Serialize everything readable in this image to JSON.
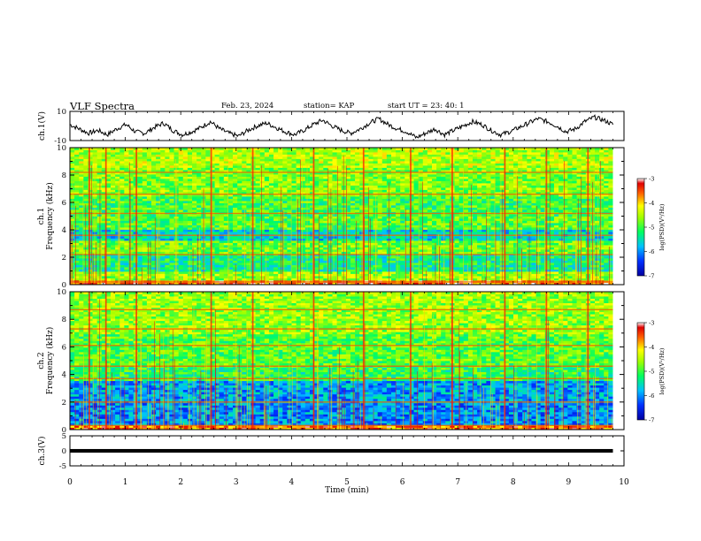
{
  "header": {
    "title": "VLF Spectra",
    "date": "Feb. 23, 2024",
    "station": "station= KAP",
    "start": "start  UT  =   23: 40: 1"
  },
  "colors": {
    "trace": "#000000",
    "colormap": [
      "#0000a0",
      "#0030ff",
      "#00a0ff",
      "#00e0c0",
      "#00ff40",
      "#a0ff00",
      "#ffff00",
      "#ffb000",
      "#ff4000",
      "#e00000",
      "#ffffff"
    ]
  },
  "chart_data": [
    {
      "type": "line",
      "ylabel": "ch.1(V)",
      "ylim": [
        -10,
        10
      ],
      "yticks": [
        "10",
        "-10"
      ],
      "x_range_min": [
        0,
        9.8
      ],
      "series": [
        {
          "note_values": "approximate waveform (10 s samples)",
          "values": [
            1,
            -2,
            -5,
            -3,
            -6,
            -2,
            1,
            -4,
            -5,
            -1,
            2,
            -3,
            -6,
            -4,
            -1,
            3,
            -2,
            -5,
            -7,
            -3,
            0,
            2,
            -1,
            -4,
            -6,
            -3,
            1,
            4,
            0,
            -3,
            -5,
            -2,
            2,
            5,
            1,
            -2,
            -4,
            -8,
            -5,
            -2,
            -6,
            -3,
            0,
            3,
            1,
            -3,
            -6,
            -4,
            -1,
            2,
            5,
            3,
            0,
            -4,
            -2,
            3,
            6,
            4,
            1
          ]
        }
      ]
    },
    {
      "type": "heatmap",
      "ylabel_top": "ch.1",
      "ylabel": "Frequency (kHz)",
      "ylim": [
        0,
        10
      ],
      "yticks": [
        "0",
        "2",
        "4",
        "6",
        "8",
        "10"
      ],
      "colorbar": {
        "label": "log(PSD)(V²/Hz)",
        "ticks": [
          "-3",
          "-4",
          "-5",
          "-6",
          "-7"
        ],
        "range": [
          -7,
          -3
        ]
      },
      "bands": [
        {
          "freq": [
            0,
            0.3
          ],
          "level": -3.5
        },
        {
          "freq": [
            0.3,
            1.0
          ],
          "level": -4.6
        },
        {
          "freq": [
            1.0,
            2.2
          ],
          "level": -5.3
        },
        {
          "freq": [
            2.2,
            3.2
          ],
          "level": -4.8
        },
        {
          "freq": [
            3.2,
            4.0
          ],
          "level": -5.6
        },
        {
          "freq": [
            4.0,
            5.0
          ],
          "level": -4.9
        },
        {
          "freq": [
            5.0,
            6.5
          ],
          "level": -5.0
        },
        {
          "freq": [
            6.5,
            8.5
          ],
          "level": -4.7
        },
        {
          "freq": [
            8.5,
            10.0
          ],
          "level": -4.5
        }
      ],
      "lines_khz": [
        0.2,
        2.2,
        3.6,
        5.2,
        6.6,
        8.2
      ],
      "bursts_min": [
        0.35,
        0.65,
        1.2,
        2.55,
        3.3,
        4.4,
        5.3,
        6.15,
        6.9,
        7.85,
        8.6,
        9.35
      ]
    },
    {
      "type": "heatmap",
      "ylabel_top": "ch.2",
      "ylabel": "Frequency (kHz)",
      "ylim": [
        0,
        10
      ],
      "yticks": [
        "0",
        "2",
        "4",
        "6",
        "8",
        "10"
      ],
      "colorbar": {
        "label": "log(PSD)(V²/Hz)",
        "ticks": [
          "-3",
          "-4",
          "-5",
          "-6",
          "-7"
        ],
        "range": [
          -7,
          -3
        ]
      },
      "bands": [
        {
          "freq": [
            0,
            0.4
          ],
          "level": -3.6
        },
        {
          "freq": [
            0.4,
            2.0
          ],
          "level": -6.0
        },
        {
          "freq": [
            2.0,
            3.6
          ],
          "level": -5.9
        },
        {
          "freq": [
            3.6,
            4.6
          ],
          "level": -5.1
        },
        {
          "freq": [
            4.6,
            7.0
          ],
          "level": -4.9
        },
        {
          "freq": [
            7.0,
            10.0
          ],
          "level": -4.6
        }
      ],
      "lines_khz": [
        0.3,
        2.0,
        3.7,
        4.6,
        6.1,
        7.3,
        8.7
      ],
      "bursts_min": [
        0.35,
        0.65,
        1.2,
        2.55,
        3.3,
        4.4,
        5.3,
        6.15,
        6.9,
        7.85,
        8.6,
        9.35
      ]
    },
    {
      "type": "line",
      "ylabel": "ch.3(V)",
      "ylim": [
        -5,
        5
      ],
      "yticks": [
        "5",
        "0",
        "-5"
      ],
      "series": [
        {
          "values": [
            0.0,
            0.0
          ]
        }
      ],
      "x_range_min": [
        0,
        9.8
      ]
    }
  ],
  "xaxis": {
    "label": "Time (min)",
    "ticks": [
      "0",
      "1",
      "2",
      "3",
      "4",
      "5",
      "6",
      "7",
      "8",
      "9",
      "10"
    ],
    "range": [
      0,
      10
    ]
  }
}
